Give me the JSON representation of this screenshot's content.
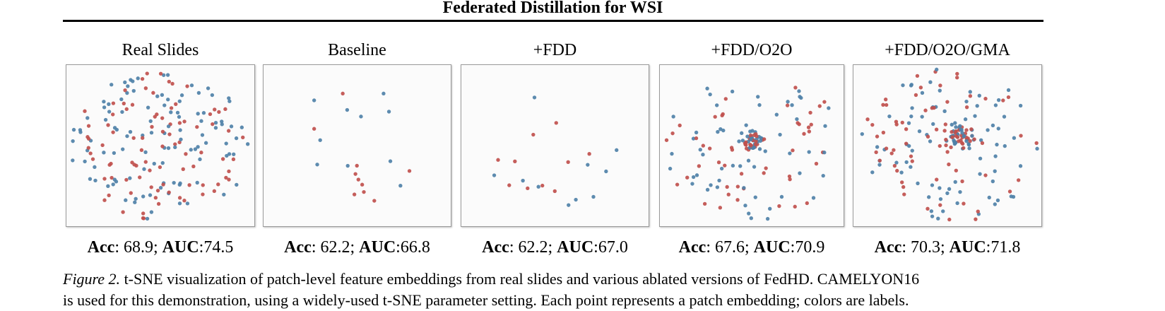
{
  "header": {
    "title": "Federated Distillation for WSI"
  },
  "panels": [
    {
      "label": "Real Slides",
      "acc_label": "Acc",
      "acc_value": ": 68.9; ",
      "auc_label": "AUC",
      "auc_value": ":74.5",
      "point_count_red": 90,
      "point_count_blue": 110,
      "style": "uniform",
      "seed": 11
    },
    {
      "label": "Baseline",
      "acc_label": "Acc",
      "acc_value": ": 62.2; ",
      "auc_label": "AUC",
      "auc_value": ":66.8",
      "point_count_red": 10,
      "point_count_blue": 10,
      "style": "sparse",
      "seed": 23
    },
    {
      "label": "+FDD",
      "acc_label": "Acc",
      "acc_value": ": 62.2; ",
      "auc_label": "AUC",
      "auc_value": ":67.0",
      "point_count_red": 10,
      "point_count_blue": 10,
      "style": "sparse",
      "seed": 37
    },
    {
      "label": "+FDD/O2O",
      "acc_label": "Acc",
      "acc_value": ": 67.6; ",
      "auc_label": "AUC",
      "auc_value": ":70.9",
      "point_count_red": 70,
      "point_count_blue": 80,
      "style": "cluster",
      "seed": 51
    },
    {
      "label": "+FDD/O2O/GMA",
      "acc_label": "Acc",
      "acc_value": ": 70.3; ",
      "auc_label": "AUC",
      "auc_value": ":71.8",
      "point_count_red": 95,
      "point_count_blue": 110,
      "style": "cluster-wide",
      "seed": 73
    }
  ],
  "caption": {
    "figure_label": "Figure 2.",
    "text": " t-SNE visualization of patch-level feature embeddings from real slides and various ablated versions of FedHD. CAMELYON16",
    "text_line2": "is used for this demonstration, using a widely-used t-SNE parameter setting. Each point represents a patch embedding; colors are labels."
  },
  "colors": {
    "red": "#c0504d",
    "blue": "#4f81a8",
    "panel_bg": "#fbfbfb",
    "panel_border": "#9a9a9a"
  }
}
